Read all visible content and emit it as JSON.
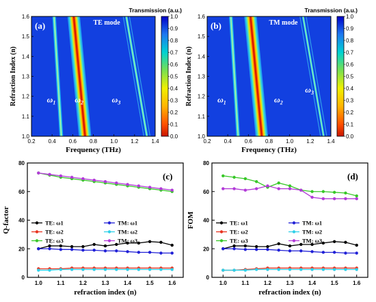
{
  "chart_data": [
    {
      "id": "a",
      "type": "heatmap",
      "panel_label": "(a)",
      "mode_label": "TE mode",
      "xlabel": "Frequency (THz)",
      "ylabel": "Refraction Index (n)",
      "xlim": [
        0.2,
        1.4
      ],
      "ylim": [
        1.0,
        1.6
      ],
      "xticks": [
        "0.2",
        "0.4",
        "0.6",
        "0.8",
        "1.0",
        "1.2",
        "1.4"
      ],
      "yticks": [
        "1.0",
        "1.1",
        "1.2",
        "1.3",
        "1.4",
        "1.5",
        "1.6"
      ],
      "colorbar_title": "Transmission (a.u.)",
      "colorbar_ticks": [
        "0.0",
        "0.1",
        "0.2",
        "0.3",
        "0.4",
        "0.5",
        "0.6",
        "0.7",
        "0.8",
        "0.9",
        "1.0"
      ],
      "resonances": [
        {
          "label": "ω",
          "sub": "1",
          "f_at_n1": 0.49,
          "f_at_n16": 0.42,
          "width": 0.035
        },
        {
          "label": "ω",
          "sub": "2",
          "f_at_n1": 0.72,
          "f_at_n16": 0.61,
          "width": 0.12
        },
        {
          "label": "ω",
          "sub": "3",
          "f_at_n1": 1.32,
          "f_at_n16": 1.12,
          "width": 0.025
        }
      ]
    },
    {
      "id": "b",
      "type": "heatmap",
      "panel_label": "(b)",
      "mode_label": "TM mode",
      "xlabel": "Frequency (THz)",
      "ylabel": "Refraction Index (n)",
      "xlim": [
        0.2,
        1.4
      ],
      "ylim": [
        1.0,
        1.6
      ],
      "xticks": [
        "0.2",
        "0.4",
        "0.6",
        "0.8",
        "1.0",
        "1.2",
        "1.4"
      ],
      "yticks": [
        "1.0",
        "1.1",
        "1.2",
        "1.3",
        "1.4",
        "1.5",
        "1.6"
      ],
      "colorbar_title": "Transmission (a.u.)",
      "colorbar_ticks": [
        "0.0",
        "0.1",
        "0.2",
        "0.3",
        "0.4",
        "0.5",
        "0.6",
        "0.7",
        "0.8",
        "0.9",
        "1.0"
      ],
      "resonances": [
        {
          "label": "ω",
          "sub": "1",
          "f_at_n1": 0.5,
          "f_at_n16": 0.43,
          "width": 0.035
        },
        {
          "label": "ω",
          "sub": "2",
          "f_at_n1": 0.73,
          "f_at_n16": 0.62,
          "width": 0.12
        },
        {
          "label": "ω",
          "sub": "3",
          "f_at_n1": 1.33,
          "f_at_n16": 1.13,
          "width": 0.022
        }
      ]
    },
    {
      "id": "c",
      "type": "line",
      "panel_label": "(c)",
      "xlabel": "refraction index (n)",
      "ylabel": "Q-factor",
      "xlim": [
        0.95,
        1.65
      ],
      "ylim": [
        0,
        80
      ],
      "xticks": [
        1.0,
        1.1,
        1.2,
        1.3,
        1.4,
        1.5,
        1.6
      ],
      "yticks": [
        0,
        20,
        40,
        60,
        80
      ],
      "x": [
        1.0,
        1.05,
        1.1,
        1.15,
        1.2,
        1.25,
        1.3,
        1.35,
        1.4,
        1.45,
        1.5,
        1.55,
        1.6
      ],
      "series": [
        {
          "name": "TE: ω1",
          "color": "#000000",
          "values": [
            20,
            22,
            22,
            21.5,
            21.5,
            23,
            22,
            23,
            24,
            24,
            25,
            24.5,
            22.5
          ]
        },
        {
          "name": "TM: ω1",
          "color": "#1f1fd6",
          "values": [
            20,
            20,
            19.5,
            19.5,
            19,
            19,
            18.5,
            18.5,
            18,
            17.5,
            17.5,
            17,
            17
          ]
        },
        {
          "name": "TE: ω2",
          "color": "#e8321e",
          "values": [
            6,
            6,
            6,
            6.5,
            6.5,
            6.5,
            6.5,
            6.5,
            6.5,
            6.5,
            6.5,
            6.5,
            6.5
          ]
        },
        {
          "name": "TM: ω2",
          "color": "#2fd0e8",
          "values": [
            5,
            5,
            5.5,
            5.5,
            5.5,
            5.5,
            5.5,
            5.5,
            5.5,
            5.5,
            5.5,
            5.5,
            5.5
          ]
        },
        {
          "name": "TE: ω3",
          "color": "#38c828",
          "values": [
            73,
            71.5,
            70,
            69,
            68,
            67,
            66,
            65,
            64,
            63,
            62,
            61,
            60
          ]
        },
        {
          "name": "TM: ω3",
          "color": "#b23ad8",
          "values": [
            73,
            72,
            71,
            70,
            69,
            68,
            67,
            66,
            65,
            64,
            63,
            62,
            61
          ]
        }
      ],
      "legend_placement": "center-left"
    },
    {
      "id": "d",
      "type": "line",
      "panel_label": "(d)",
      "xlabel": "refraction index (n)",
      "ylabel": "FOM",
      "xlim": [
        0.95,
        1.65
      ],
      "ylim": [
        0,
        80
      ],
      "xticks": [
        1.0,
        1.1,
        1.2,
        1.3,
        1.4,
        1.5,
        1.6
      ],
      "yticks": [
        0,
        20,
        40,
        60,
        80
      ],
      "x": [
        1.0,
        1.05,
        1.1,
        1.15,
        1.2,
        1.25,
        1.3,
        1.35,
        1.4,
        1.45,
        1.5,
        1.55,
        1.6
      ],
      "series": [
        {
          "name": "TE: ω1",
          "color": "#000000",
          "values": [
            20,
            22,
            22,
            21.5,
            21.5,
            23.5,
            22,
            23,
            23,
            24,
            25,
            24.5,
            22.5
          ]
        },
        {
          "name": "TM: ω1",
          "color": "#1f1fd6",
          "values": [
            20,
            20,
            19.5,
            19.5,
            19.5,
            19,
            18.5,
            18.5,
            18,
            17.5,
            17.5,
            17,
            17
          ]
        },
        {
          "name": "TE: ω2",
          "color": "#e8321e",
          "values": [
            5,
            5,
            5.5,
            6,
            6.5,
            6.5,
            6.5,
            6.5,
            6.5,
            6.5,
            6.5,
            6.5,
            6.5
          ]
        },
        {
          "name": "TM: ω2",
          "color": "#2fd0e8",
          "values": [
            5,
            5,
            5,
            5.5,
            5.5,
            5.5,
            5.5,
            5.5,
            5.5,
            5.5,
            5.5,
            5.5,
            5.5
          ]
        },
        {
          "name": "TE: ω3",
          "color": "#38c828",
          "values": [
            71,
            70,
            69,
            67,
            63,
            66,
            64,
            61,
            60,
            60,
            59.5,
            59,
            57
          ]
        },
        {
          "name": "TM: ω3",
          "color": "#b23ad8",
          "values": [
            62,
            62,
            61,
            62,
            64,
            62,
            62,
            61,
            56,
            55,
            55,
            55,
            55
          ]
        }
      ],
      "legend_placement": "center-left"
    }
  ]
}
